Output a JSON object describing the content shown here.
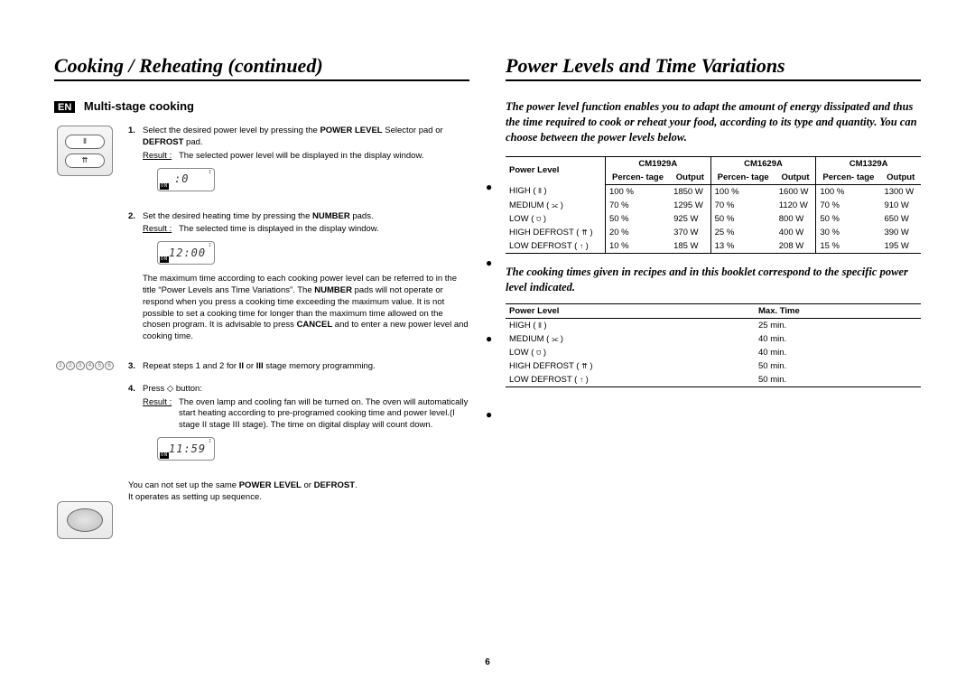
{
  "page_number": "6",
  "left": {
    "title": "Cooking / Reheating (continued)",
    "en_label": "EN",
    "subheading": "Multi-stage cooking",
    "display1": ":0",
    "display2": "12:00",
    "display3": "11:59",
    "steps": [
      {
        "num": "1.",
        "body_html": "Select the desired power level by pressing the <b>POWER LEVEL</b> Selector pad or <b>DEFROST</b> pad.",
        "result_label": "Result :",
        "result": "The selected power level will be displayed in the display window."
      },
      {
        "num": "2.",
        "body_html": "Set the desired heating time by pressing the <b>NUMBER</b> pads.",
        "result_label": "Result :",
        "result": "The selected time is displayed in the display window.",
        "after_html": "The maximum time according to each cooking power level can be referred to in the title “Power Levels ans Time Variations”. The <b>NUMBER</b> pads will not operate or respond when you press a cooking time exceeding the maximum value. It is not possible to set a cooking time for longer than the maximum time allowed on the chosen program. It is advisable to press <b>CANCEL</b> and to enter a new power level and cooking time."
      },
      {
        "num": "3.",
        "body_html": "Repeat steps 1 and 2 for <b>II</b> or <b>III</b> stage memory programming."
      },
      {
        "num": "4.",
        "body_html": "Press ◇ button:",
        "result_label": "Result :",
        "result": "The oven lamp and cooling fan will be turned on. The oven will automatically start heating according to pre-programed cooking time and power level.(I stage      II stage     III stage). The time on digital display will count down."
      }
    ],
    "footer_html": "You can not set up the same <b>POWER LEVEL</b> or <b>DEFROST</b>.<br>It operates as setting up sequence.",
    "numpad": [
      "1",
      "2",
      "3",
      "4",
      "5",
      "6"
    ]
  },
  "right": {
    "title": "Power Levels and Time Variations",
    "intro": "The power level function enables you to adapt the amount of energy dissipated and thus the time required to cook or reheat your food, according to its type and quantity. You can choose between the power levels below.",
    "power_table": {
      "models": [
        "CM1929A",
        "CM1629A",
        "CM1329A"
      ],
      "col1_header": "Power Level",
      "sub_headers": [
        "Percen-\ntage",
        "Output"
      ],
      "rows": [
        {
          "label": "HIGH",
          "sym": "⦀",
          "cells": [
            "100 %",
            "1850 W",
            "100 %",
            "1600 W",
            "100 %",
            "1300 W"
          ]
        },
        {
          "label": "MEDIUM",
          "sym": "⫘",
          "cells": [
            "70 %",
            "1295 W",
            "70 %",
            "1120 W",
            "70 %",
            "910 W"
          ]
        },
        {
          "label": "LOW",
          "sym": "⩌",
          "cells": [
            "50 %",
            "925 W",
            "50 %",
            "800 W",
            "50 %",
            "650 W"
          ]
        },
        {
          "label": "HIGH DEFROST",
          "sym": "⇈",
          "cells": [
            "20 %",
            "370 W",
            "25 %",
            "400 W",
            "30 %",
            "390 W"
          ]
        },
        {
          "label": "LOW DEFROST",
          "sym": "↑",
          "cells": [
            "10 %",
            "185 W",
            "13 %",
            "208 W",
            "15 %",
            "195 W"
          ]
        }
      ]
    },
    "note": "The cooking times given in recipes and in this booklet correspond to the specific power level indicated.",
    "max_table": {
      "headers": [
        "Power Level",
        "Max. Time"
      ],
      "rows": [
        {
          "label": "HIGH",
          "sym": "⦀",
          "time": "25 min."
        },
        {
          "label": "MEDIUM",
          "sym": "⫘",
          "time": "40 min."
        },
        {
          "label": "LOW",
          "sym": "⩌",
          "time": "40 min."
        },
        {
          "label": "HIGH DEFROST",
          "sym": "⇈",
          "time": "50 min."
        },
        {
          "label": "LOW DEFROST",
          "sym": "↑",
          "time": "50 min."
        }
      ]
    }
  }
}
